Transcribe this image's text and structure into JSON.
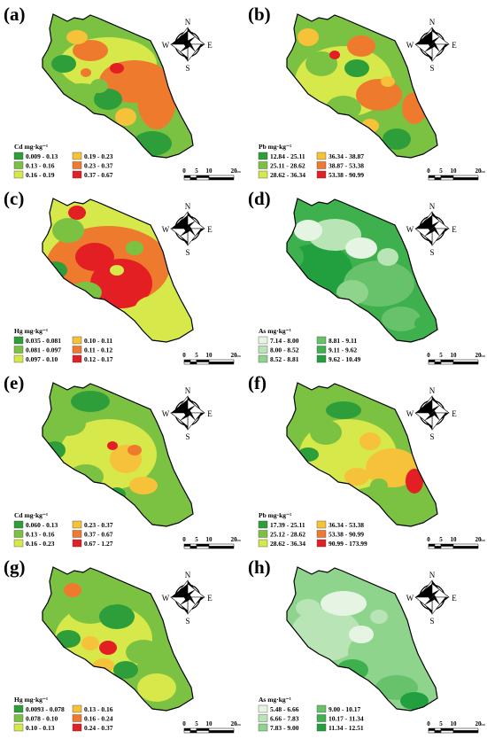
{
  "colors": {
    "dark_green": "#2e9e3a",
    "green": "#7cc242",
    "yellow_green": "#d6e84a",
    "yellow": "#f5c23a",
    "orange": "#ee7b2d",
    "red": "#e31f24",
    "as_pale": "#e6f5e3",
    "as_light": "#b9e4b5",
    "as_mid": "#8fd48d",
    "as_green": "#67c26b",
    "as_deep": "#3fb04e",
    "as_dark": "#22a03f"
  },
  "compass": {
    "n": "N",
    "s": "S",
    "e": "E",
    "w": "W"
  },
  "scale_bar": {
    "labels": [
      "0",
      "5",
      "10",
      "20"
    ],
    "unit": "km"
  },
  "panels": [
    {
      "id": "a",
      "label": "(a)",
      "legend_title": "Cd mg·kg⁻¹",
      "legend": [
        {
          "range": "0.009 - 0.13",
          "color": "#2e9e3a"
        },
        {
          "range": "0.13 - 0.16",
          "color": "#7cc242"
        },
        {
          "range": "0.16 - 0.19",
          "color": "#d6e84a"
        },
        {
          "range": "0.19 - 0.23",
          "color": "#f5c23a"
        },
        {
          "range": "0.23 - 0.37",
          "color": "#ee7b2d"
        },
        {
          "range": "0.37 - 0.67",
          "color": "#e31f24"
        }
      ]
    },
    {
      "id": "b",
      "label": "(b)",
      "legend_title": "Pb mg·kg⁻¹",
      "legend": [
        {
          "range": "12.84 - 25.11",
          "color": "#2e9e3a"
        },
        {
          "range": "25.11 - 28.62",
          "color": "#7cc242"
        },
        {
          "range": "28.62 - 36.34",
          "color": "#d6e84a"
        },
        {
          "range": "36.34 - 38.87",
          "color": "#f5c23a"
        },
        {
          "range": "38.87 - 53.38",
          "color": "#ee7b2d"
        },
        {
          "range": "53.38 - 90.99",
          "color": "#e31f24"
        }
      ]
    },
    {
      "id": "c",
      "label": "(c)",
      "legend_title": "Hg mg·kg⁻¹",
      "legend": [
        {
          "range": "0.035 - 0.081",
          "color": "#2e9e3a"
        },
        {
          "range": "0.081 - 0.097",
          "color": "#7cc242"
        },
        {
          "range": "0.097 - 0.10",
          "color": "#d6e84a"
        },
        {
          "range": "0.10 - 0.11",
          "color": "#f5c23a"
        },
        {
          "range": "0.11 - 0.12",
          "color": "#ee7b2d"
        },
        {
          "range": "0.12 - 0.17",
          "color": "#e31f24"
        }
      ]
    },
    {
      "id": "d",
      "label": "(d)",
      "legend_title": "As mg·kg⁻¹",
      "legend": [
        {
          "range": "7.14 - 8.00",
          "color": "#e6f5e3"
        },
        {
          "range": "8.00 - 8.52",
          "color": "#b9e4b5"
        },
        {
          "range": "8.52 - 8.81",
          "color": "#8fd48d"
        },
        {
          "range": "8.81 - 9.11",
          "color": "#67c26b"
        },
        {
          "range": "9.11 - 9.62",
          "color": "#3fb04e"
        },
        {
          "range": "9.62 - 10.49",
          "color": "#22a03f"
        }
      ]
    },
    {
      "id": "e",
      "label": "(e)",
      "legend_title": "Cd mg·kg⁻¹",
      "legend": [
        {
          "range": "0.060 - 0.13",
          "color": "#2e9e3a"
        },
        {
          "range": "0.13 - 0.16",
          "color": "#7cc242"
        },
        {
          "range": "0.16 - 0.23",
          "color": "#d6e84a"
        },
        {
          "range": "0.23 - 0.37",
          "color": "#f5c23a"
        },
        {
          "range": "0.37 - 0.67",
          "color": "#ee7b2d"
        },
        {
          "range": "0.67 - 1.27",
          "color": "#e31f24"
        }
      ]
    },
    {
      "id": "f",
      "label": "(f)",
      "legend_title": "Pb mg·kg⁻¹",
      "legend": [
        {
          "range": "17.39 - 25.11",
          "color": "#2e9e3a"
        },
        {
          "range": "25.12 - 28.62",
          "color": "#7cc242"
        },
        {
          "range": "28.62 - 36.34",
          "color": "#d6e84a"
        },
        {
          "range": "36.34 - 53.38",
          "color": "#f5c23a"
        },
        {
          "range": "53.38 - 90.99",
          "color": "#ee7b2d"
        },
        {
          "range": "90.99 - 173.99",
          "color": "#e31f24"
        }
      ]
    },
    {
      "id": "g",
      "label": "(g)",
      "legend_title": "Hg mg·kg⁻¹",
      "legend": [
        {
          "range": "0.0093 - 0.078",
          "color": "#2e9e3a"
        },
        {
          "range": "0.078 - 0.10",
          "color": "#7cc242"
        },
        {
          "range": "0.10 - 0.13",
          "color": "#d6e84a"
        },
        {
          "range": "0.13 - 0.16",
          "color": "#f5c23a"
        },
        {
          "range": "0.16 - 0.24",
          "color": "#ee7b2d"
        },
        {
          "range": "0.24 - 0.37",
          "color": "#e31f24"
        }
      ]
    },
    {
      "id": "h",
      "label": "(h)",
      "legend_title": "As mg·kg⁻¹",
      "legend": [
        {
          "range": "5.48 - 6.66",
          "color": "#e6f5e3"
        },
        {
          "range": "6.66 - 7.83",
          "color": "#b9e4b5"
        },
        {
          "range": "7.83 - 9.00",
          "color": "#8fd48d"
        },
        {
          "range": "9.00 - 10.17",
          "color": "#67c26b"
        },
        {
          "range": "10.17 - 11.34",
          "color": "#3fb04e"
        },
        {
          "range": "11.34 - 12.51",
          "color": "#22a03f"
        }
      ]
    }
  ]
}
